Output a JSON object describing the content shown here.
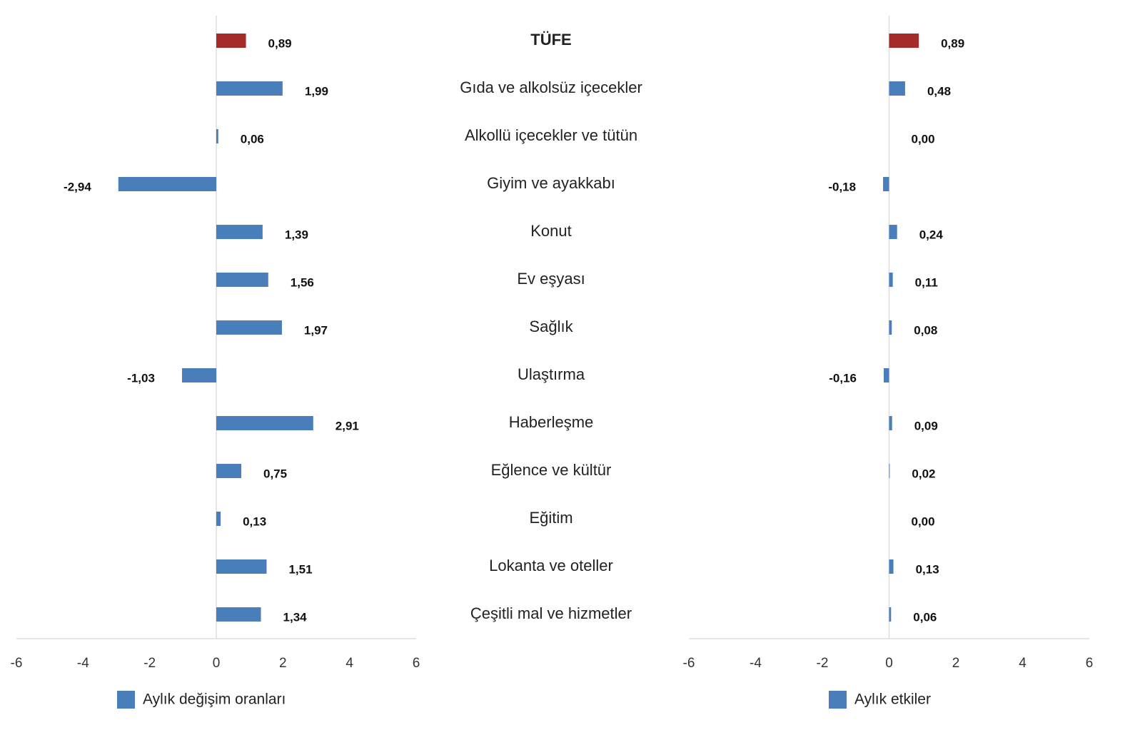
{
  "chart_data": [
    {
      "type": "bar",
      "orientation": "horizontal",
      "categories": [
        "TÜFE",
        "Gıda ve alkolsüz içecekler",
        "Alkollü içecekler ve tütün",
        "Giyim ve ayakkabı",
        "Konut",
        "Ev eşyası",
        "Sağlık",
        "Ulaştırma",
        "Haberleşme",
        "Eğlence ve kültür",
        "Eğitim",
        "Lokanta ve oteller",
        "Çeşitli mal ve hizmetler"
      ],
      "series": [
        {
          "name": "Aylık değişim oranları",
          "color": "#4a7ebb",
          "colors": [
            "#a52a2a",
            "#4a7ebb",
            "#4a7ebb",
            "#4a7ebb",
            "#4a7ebb",
            "#4a7ebb",
            "#4a7ebb",
            "#4a7ebb",
            "#4a7ebb",
            "#4a7ebb",
            "#4a7ebb",
            "#4a7ebb",
            "#4a7ebb"
          ],
          "values": [
            0.89,
            1.99,
            0.06,
            -2.94,
            1.39,
            1.56,
            1.97,
            -1.03,
            2.91,
            0.75,
            0.13,
            1.51,
            1.34
          ],
          "value_labels": [
            "0,89",
            "1,99",
            "0,06",
            "-2,94",
            "1,39",
            "1,56",
            "1,97",
            "-1,03",
            "2,91",
            "0,75",
            "0,13",
            "1,51",
            "1,34"
          ]
        }
      ],
      "xlim": [
        -6,
        6
      ],
      "xticks": [
        -6,
        -4,
        -2,
        0,
        2,
        4,
        6
      ]
    },
    {
      "type": "bar",
      "orientation": "horizontal",
      "series": [
        {
          "name": "Aylık etkiler",
          "color": "#4a7ebb",
          "colors": [
            "#a52a2a",
            "#4a7ebb",
            "#4a7ebb",
            "#4a7ebb",
            "#4a7ebb",
            "#4a7ebb",
            "#4a7ebb",
            "#4a7ebb",
            "#4a7ebb",
            "#4a7ebb",
            "#4a7ebb",
            "#4a7ebb",
            "#4a7ebb"
          ],
          "values": [
            0.89,
            0.48,
            0.0,
            -0.18,
            0.24,
            0.11,
            0.08,
            -0.16,
            0.09,
            0.02,
            0.0,
            0.13,
            0.06
          ],
          "value_labels": [
            "0,89",
            "0,48",
            "0,00",
            "-0,18",
            "0,24",
            "0,11",
            "0,08",
            "-0,16",
            "0,09",
            "0,02",
            "0,00",
            "0,13",
            "0,06"
          ]
        }
      ],
      "xlim": [
        -6,
        6
      ],
      "xticks": [
        -6,
        -4,
        -2,
        0,
        2,
        4,
        6
      ]
    }
  ]
}
